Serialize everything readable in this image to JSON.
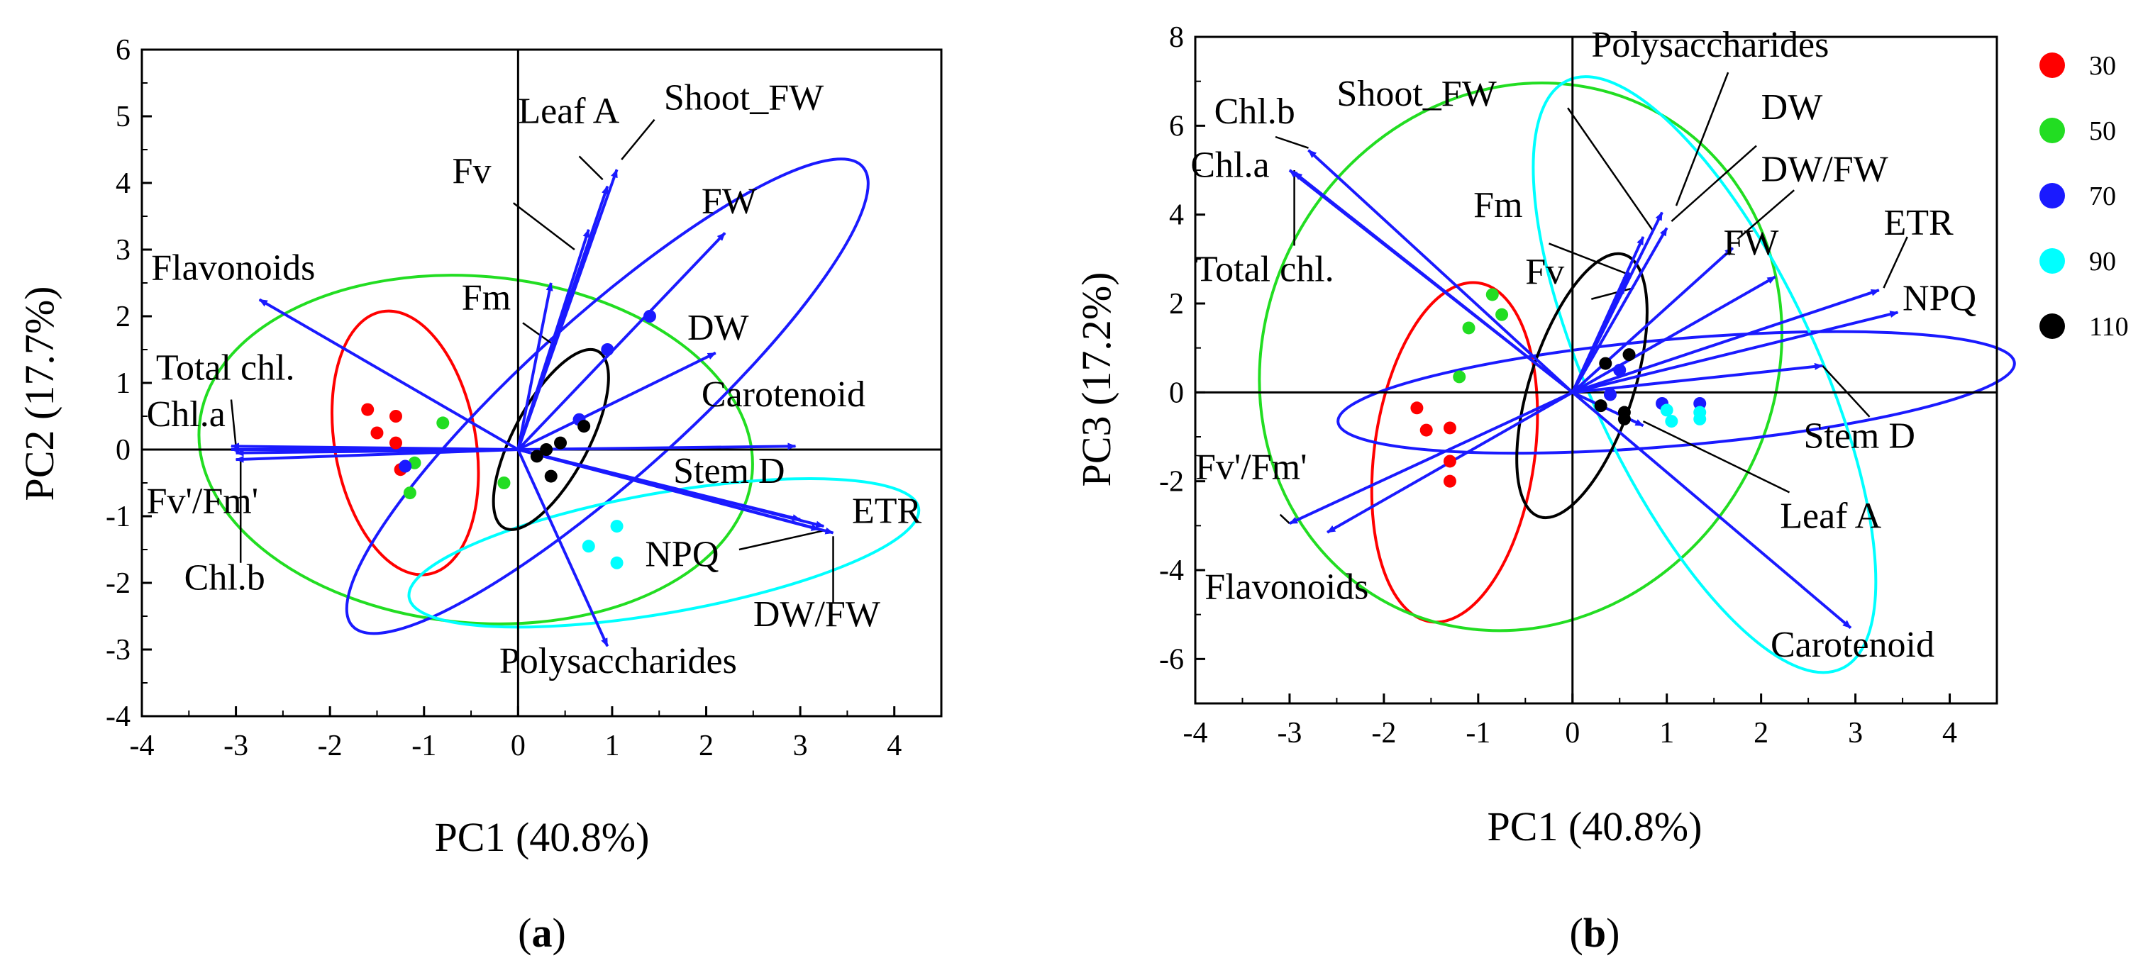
{
  "chart_data": [
    {
      "type": "scatter",
      "subtype": "pca-biplot",
      "panel_label": "a",
      "xlabel": "PC1 (40.8%)",
      "ylabel": "PC2 (17.7%)",
      "xlim": [
        -4,
        4.5
      ],
      "ylim": [
        -4,
        6
      ],
      "xticks": [
        -4,
        -3,
        -2,
        -1,
        0,
        1,
        2,
        3,
        4
      ],
      "yticks": [
        -4,
        -3,
        -2,
        -1,
        0,
        1,
        2,
        3,
        4,
        5,
        6
      ],
      "loadings": [
        {
          "label": "Leaf A",
          "x": 0.95,
          "y": 3.95
        },
        {
          "label": "Shoot_FW",
          "x": 1.05,
          "y": 4.2
        },
        {
          "label": "Fv",
          "x": 0.75,
          "y": 3.3
        },
        {
          "label": "FW",
          "x": 2.2,
          "y": 3.25
        },
        {
          "label": "DW",
          "x": 2.1,
          "y": 1.45
        },
        {
          "label": "Fm",
          "x": 0.35,
          "y": 2.5
        },
        {
          "label": "Carotenoid",
          "x": 2.95,
          "y": 0.05
        },
        {
          "label": "Stem D",
          "x": 3.0,
          "y": -1.05
        },
        {
          "label": "ETR",
          "x": 3.35,
          "y": -1.25
        },
        {
          "label": "NPQ",
          "x": 3.2,
          "y": -1.2
        },
        {
          "label": "DW/FW",
          "x": 3.25,
          "y": -1.15
        },
        {
          "label": "Polysaccharides",
          "x": 0.95,
          "y": -2.95
        },
        {
          "label": "Flavonoids",
          "x": -2.75,
          "y": 2.25
        },
        {
          "label": "Total chl.",
          "x": -3.05,
          "y": 0.05
        },
        {
          "label": "Chl.a",
          "x": -3.05,
          "y": 0.0
        },
        {
          "label": "Fv'/Fm'",
          "x": -3.0,
          "y": -0.05
        },
        {
          "label": "Chl.b",
          "x": -3.0,
          "y": -0.15
        }
      ],
      "series": [
        {
          "name": "30",
          "color": "#ff0000",
          "points": [
            [
              -1.6,
              0.6
            ],
            [
              -1.3,
              0.5
            ],
            [
              -1.5,
              0.25
            ],
            [
              -1.3,
              0.1
            ],
            [
              -1.25,
              -0.3
            ]
          ]
        },
        {
          "name": "50",
          "color": "#22dd22",
          "points": [
            [
              -0.8,
              0.4
            ],
            [
              -1.1,
              -0.2
            ],
            [
              -1.15,
              -0.65
            ],
            [
              -0.15,
              -0.5
            ]
          ]
        },
        {
          "name": "70",
          "color": "#1a1aff",
          "points": [
            [
              0.95,
              1.5
            ],
            [
              1.4,
              2.0
            ],
            [
              0.65,
              0.45
            ],
            [
              -1.2,
              -0.25
            ]
          ]
        },
        {
          "name": "90",
          "color": "#00ffff",
          "points": [
            [
              1.05,
              -1.15
            ],
            [
              0.75,
              -1.45
            ],
            [
              1.05,
              -1.7
            ]
          ]
        },
        {
          "name": "110",
          "color": "#000000",
          "points": [
            [
              0.7,
              0.35
            ],
            [
              0.45,
              0.1
            ],
            [
              0.3,
              0.0
            ],
            [
              0.35,
              -0.4
            ],
            [
              0.2,
              -0.1
            ]
          ]
        }
      ],
      "ellipses": [
        {
          "group": "30",
          "center": [
            -1.2,
            0.1
          ],
          "semi_axes": [
            0.75,
            2.0
          ],
          "rotation_deg": 10
        },
        {
          "group": "50",
          "center": [
            -0.45,
            0.0
          ],
          "semi_axes": [
            2.95,
            2.6
          ],
          "rotation_deg": -5
        },
        {
          "group": "70",
          "center": [
            0.95,
            0.8
          ],
          "semi_axes": [
            3.65,
            1.2
          ],
          "rotation_deg": 42
        },
        {
          "group": "90",
          "center": [
            1.55,
            -1.55
          ],
          "semi_axes": [
            2.75,
            0.9
          ],
          "rotation_deg": 10
        },
        {
          "group": "110",
          "center": [
            0.35,
            0.15
          ],
          "semi_axes": [
            0.4,
            1.5
          ],
          "rotation_deg": -28
        }
      ],
      "label_annotations": [
        {
          "label": "Leaf A",
          "anchor": [
            0.9,
            4.05
          ],
          "text_at": [
            0.0,
            4.9
          ],
          "leader_from": [
            0.65,
            4.4
          ]
        },
        {
          "label": "Shoot_FW",
          "anchor": [
            1.1,
            4.35
          ],
          "text_at": [
            1.55,
            5.1
          ],
          "leader_from": [
            1.45,
            4.95
          ]
        },
        {
          "label": "Fv",
          "anchor": [
            0.6,
            3.0
          ],
          "text_at": [
            -0.7,
            4.0
          ],
          "leader_from": [
            -0.05,
            3.7
          ]
        },
        {
          "label": "FW",
          "anchor": [
            2.25,
            3.35
          ],
          "text_at": [
            1.95,
            3.55
          ],
          "leader_from": null
        },
        {
          "label": "DW",
          "anchor": [
            2.15,
            1.55
          ],
          "text_at": [
            1.8,
            1.65
          ],
          "leader_from": null
        },
        {
          "label": "Fm",
          "anchor": [
            0.35,
            1.6
          ],
          "text_at": [
            -0.6,
            2.1
          ],
          "leader_from": [
            0.05,
            1.9
          ]
        },
        {
          "label": "Carotenoid",
          "anchor": [
            2.95,
            0.1
          ],
          "text_at": [
            1.95,
            0.65
          ],
          "leader_from": null
        },
        {
          "label": "Stem D",
          "anchor": [
            1.7,
            -0.6
          ],
          "text_at": [
            1.65,
            -0.5
          ],
          "leader_from": null
        },
        {
          "label": "ETR",
          "anchor": [
            3.45,
            -1.25
          ],
          "text_at": [
            3.55,
            -1.1
          ],
          "leader_from": null
        },
        {
          "label": "NPQ",
          "anchor": [
            3.3,
            -1.2
          ],
          "text_at": [
            1.35,
            -1.75
          ],
          "leader_from": [
            2.35,
            -1.5
          ]
        },
        {
          "label": "DW/FW",
          "anchor": [
            3.35,
            -1.3
          ],
          "text_at": [
            2.5,
            -2.65
          ],
          "leader_from": [
            3.35,
            -2.3
          ]
        },
        {
          "label": "Polysaccharides",
          "anchor": null,
          "text_at": [
            -0.2,
            -3.35
          ],
          "leader_from": null
        },
        {
          "label": "Flavonoids",
          "anchor": null,
          "text_at": [
            -3.9,
            2.55
          ],
          "leader_from": null
        },
        {
          "label": "Total chl.",
          "anchor": [
            -3.0,
            0.05
          ],
          "text_at": [
            -3.85,
            1.05
          ],
          "leader_from": [
            -3.05,
            0.75
          ]
        },
        {
          "label": "Chl.a",
          "anchor": [
            -3.0,
            0.0
          ],
          "text_at": [
            -3.95,
            0.35
          ],
          "leader_from": null
        },
        {
          "label": "Fv'/Fm'",
          "anchor": [
            -2.9,
            -0.1
          ],
          "text_at": [
            -3.95,
            -0.95
          ],
          "leader_from": null
        },
        {
          "label": "Chl.b",
          "anchor": [
            -2.95,
            -0.15
          ],
          "text_at": [
            -3.55,
            -2.1
          ],
          "leader_from": [
            -2.95,
            -1.7
          ]
        }
      ]
    },
    {
      "type": "scatter",
      "subtype": "pca-biplot",
      "panel_label": "b",
      "xlabel": "PC1 (40.8%)",
      "ylabel": "PC3 (17.2%)",
      "xlim": [
        -4,
        4.5
      ],
      "ylim": [
        -7,
        8
      ],
      "xticks": [
        -4,
        -3,
        -2,
        -1,
        0,
        1,
        2,
        3,
        4
      ],
      "yticks": [
        -6,
        -4,
        -2,
        0,
        2,
        4,
        6,
        8
      ],
      "loadings": [
        {
          "label": "Chl.b",
          "x": -2.8,
          "y": 5.45
        },
        {
          "label": "Chl.a",
          "x": -3.0,
          "y": 5.0
        },
        {
          "label": "Total chl.",
          "x": -2.95,
          "y": 4.95
        },
        {
          "label": "Polysaccharides",
          "x": 0.95,
          "y": 4.05
        },
        {
          "label": "DW",
          "x": 1.0,
          "y": 3.7
        },
        {
          "label": "Shoot_FW",
          "x": 0.75,
          "y": 3.5
        },
        {
          "label": "Fm",
          "x": 0.6,
          "y": 2.7
        },
        {
          "label": "Fv",
          "x": 0.55,
          "y": 2.4
        },
        {
          "label": "DW/FW",
          "x": 1.7,
          "y": 3.25
        },
        {
          "label": "FW",
          "x": 2.15,
          "y": 2.6
        },
        {
          "label": "ETR",
          "x": 3.25,
          "y": 2.3
        },
        {
          "label": "NPQ",
          "x": 3.45,
          "y": 1.8
        },
        {
          "label": "Stem D",
          "x": 2.65,
          "y": 0.6
        },
        {
          "label": "Leaf A",
          "x": 0.75,
          "y": -0.75
        },
        {
          "label": "Carotenoid",
          "x": 2.95,
          "y": -5.3
        },
        {
          "label": "Fv'/Fm'",
          "x": -3.0,
          "y": -2.95
        },
        {
          "label": "Flavonoids",
          "x": -2.6,
          "y": -3.15
        }
      ],
      "series": [
        {
          "name": "30",
          "color": "#ff0000",
          "points": [
            [
              -1.65,
              -0.35
            ],
            [
              -1.55,
              -0.85
            ],
            [
              -1.3,
              -0.8
            ],
            [
              -1.3,
              -1.55
            ],
            [
              -1.3,
              -2.0
            ]
          ]
        },
        {
          "name": "50",
          "color": "#22dd22",
          "points": [
            [
              -0.85,
              2.2
            ],
            [
              -1.1,
              1.45
            ],
            [
              -0.75,
              1.75
            ],
            [
              -1.2,
              0.35
            ]
          ]
        },
        {
          "name": "70",
          "color": "#1a1aff",
          "points": [
            [
              0.95,
              -0.25
            ],
            [
              1.35,
              -0.25
            ],
            [
              0.5,
              0.5
            ],
            [
              0.4,
              -0.05
            ]
          ]
        },
        {
          "name": "90",
          "color": "#00ffff",
          "points": [
            [
              1.0,
              -0.4
            ],
            [
              1.05,
              -0.65
            ],
            [
              1.35,
              -0.6
            ],
            [
              1.35,
              -0.45
            ]
          ]
        },
        {
          "name": "110",
          "color": "#000000",
          "points": [
            [
              0.35,
              0.65
            ],
            [
              0.6,
              0.85
            ],
            [
              0.3,
              -0.3
            ],
            [
              0.55,
              -0.6
            ],
            [
              0.55,
              -0.45
            ]
          ]
        }
      ],
      "ellipses": [
        {
          "group": "30",
          "center": [
            -1.25,
            -1.35
          ],
          "semi_axes": [
            0.85,
            3.85
          ],
          "rotation_deg": -8
        },
        {
          "group": "50",
          "center": [
            -0.55,
            0.8
          ],
          "semi_axes": [
            2.7,
            6.3
          ],
          "rotation_deg": -30
        },
        {
          "group": "70",
          "center": [
            1.1,
            0.0
          ],
          "semi_axes": [
            3.6,
            1.2
          ],
          "rotation_deg": 5
        },
        {
          "group": "90",
          "center": [
            1.4,
            0.4
          ],
          "semi_axes": [
            1.2,
            7.3
          ],
          "rotation_deg": 25
        },
        {
          "group": "110",
          "center": [
            0.1,
            0.15
          ],
          "semi_axes": [
            0.55,
            3.1
          ],
          "rotation_deg": -18
        }
      ],
      "label_annotations": [
        {
          "label": "Polysaccharides",
          "anchor": [
            1.1,
            4.2
          ],
          "text_at": [
            0.2,
            7.55
          ],
          "leader_from": [
            1.65,
            7.2
          ]
        },
        {
          "label": "Shoot_FW",
          "anchor": [
            0.85,
            3.65
          ],
          "text_at": [
            -2.5,
            6.45
          ],
          "leader_from": [
            -0.05,
            6.4
          ]
        },
        {
          "label": "Chl.b",
          "anchor": [
            -2.8,
            5.5
          ],
          "text_at": [
            -3.8,
            6.05
          ],
          "leader_from": [
            -3.15,
            5.75
          ]
        },
        {
          "label": "Chl.a",
          "anchor": [
            -2.95,
            5.1
          ],
          "text_at": [
            -4.05,
            4.85
          ],
          "leader_from": null
        },
        {
          "label": "Total chl.",
          "anchor": [
            -2.95,
            5.0
          ],
          "text_at": [
            -4.0,
            2.5
          ],
          "leader_from": [
            -2.95,
            3.3
          ]
        },
        {
          "label": "DW",
          "anchor": [
            1.05,
            3.85
          ],
          "text_at": [
            2.0,
            6.15
          ],
          "leader_from": [
            1.95,
            5.55
          ]
        },
        {
          "label": "DW/FW",
          "anchor": [
            1.75,
            3.45
          ],
          "text_at": [
            2.0,
            4.75
          ],
          "leader_from": [
            2.35,
            4.55
          ]
        },
        {
          "label": "FW",
          "anchor": [
            2.2,
            2.75
          ],
          "text_at": [
            1.6,
            3.1
          ],
          "leader_from": null
        },
        {
          "label": "Fm",
          "anchor": [
            0.6,
            2.65
          ],
          "text_at": [
            -1.05,
            3.95
          ],
          "leader_from": [
            -0.25,
            3.35
          ]
        },
        {
          "label": "Fv",
          "anchor": [
            0.65,
            2.35
          ],
          "text_at": [
            -0.5,
            2.45
          ],
          "leader_from": [
            0.2,
            2.1
          ]
        },
        {
          "label": "ETR",
          "anchor": [
            3.3,
            2.35
          ],
          "text_at": [
            3.3,
            3.55
          ],
          "leader_from": [
            3.55,
            3.5
          ]
        },
        {
          "label": "NPQ",
          "anchor": [
            3.5,
            1.9
          ],
          "text_at": [
            3.5,
            1.85
          ],
          "leader_from": null
        },
        {
          "label": "Stem D",
          "anchor": [
            2.65,
            0.6
          ],
          "text_at": [
            2.45,
            -1.25
          ],
          "leader_from": [
            3.15,
            -0.55
          ]
        },
        {
          "label": "Leaf A",
          "anchor": [
            0.75,
            -0.65
          ],
          "text_at": [
            2.2,
            -3.05
          ],
          "leader_from": [
            2.3,
            -2.25
          ]
        },
        {
          "label": "Carotenoid",
          "anchor": [
            2.95,
            -5.3
          ],
          "text_at": [
            2.1,
            -5.95
          ],
          "leader_from": null
        },
        {
          "label": "Fv'/Fm'",
          "anchor": [
            -3.0,
            -2.95
          ],
          "text_at": [
            -4.0,
            -1.95
          ],
          "leader_from": [
            -3.1,
            -2.75
          ]
        },
        {
          "label": "Flavonoids",
          "anchor": [
            -2.65,
            -3.2
          ],
          "text_at": [
            -3.9,
            -4.65
          ],
          "leader_from": null
        }
      ]
    }
  ],
  "legend": {
    "placement": "right",
    "items": [
      {
        "label": "30",
        "color": "#ff0000"
      },
      {
        "label": "50",
        "color": "#22dd22"
      },
      {
        "label": "70",
        "color": "#1a1aff"
      },
      {
        "label": "90",
        "color": "#00ffff"
      },
      {
        "label": "110",
        "color": "#000000"
      }
    ]
  },
  "colors": {
    "arrow": "#1a1aff",
    "axis": "#000000"
  }
}
